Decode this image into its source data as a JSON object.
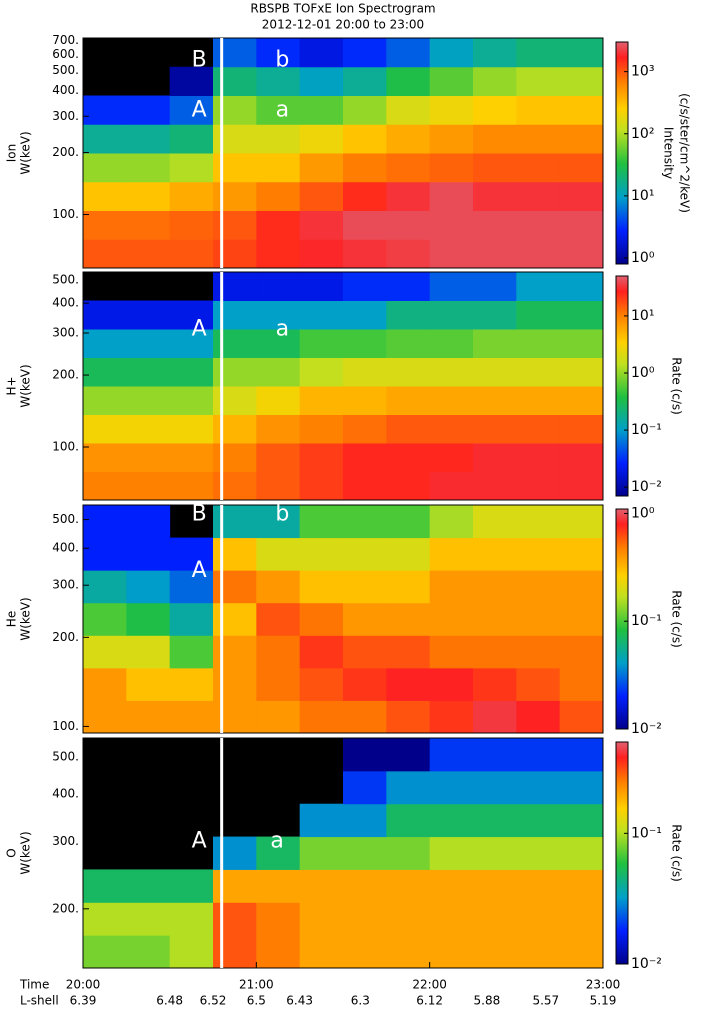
{
  "chart_data": [
    {
      "type": "heatmap",
      "title": "RBSPB  TOFxE  Ion  Spectrogram",
      "subtitle": "2012-12-01 20:00 to 23:00",
      "ylabel": [
        "Ion",
        "W(keV)"
      ],
      "colorbar_label": [
        "Intensity",
        "(c/s/ster/cm^2/keV)"
      ],
      "xlim": [
        20,
        23
      ],
      "ylim": [
        55,
        720
      ],
      "log_y": true,
      "yticks": [
        {
          "value": 100,
          "label": "100."
        },
        {
          "value": 200,
          "label": "200."
        },
        {
          "value": 300,
          "label": "300."
        },
        {
          "value": 400,
          "label": "400."
        },
        {
          "value": 500,
          "label": "500."
        },
        {
          "value": 600,
          "label": "600."
        },
        {
          "value": 700,
          "label": "700."
        }
      ],
      "clim": [
        0.8,
        3000
      ],
      "cticks": [
        {
          "value": 1,
          "label": "10⁰"
        },
        {
          "value": 10,
          "label": "10¹"
        },
        {
          "value": 100,
          "label": "10²"
        },
        {
          "value": 1000,
          "label": "10³"
        }
      ],
      "z": [
        [
          1000,
          1000,
          1000,
          1200,
          1500,
          1800,
          2000,
          2200,
          2500,
          2500,
          2500,
          2500
        ],
        [
          800,
          800,
          900,
          1000,
          1500,
          2000,
          2500,
          2500,
          2500,
          2500,
          2500,
          2500
        ],
        [
          300,
          300,
          400,
          500,
          700,
          1000,
          1500,
          2000,
          2500,
          2000,
          2000,
          2000
        ],
        [
          80,
          80,
          100,
          300,
          300,
          500,
          700,
          800,
          900,
          1000,
          1000,
          1000
        ],
        [
          15,
          15,
          20,
          150,
          150,
          200,
          300,
          400,
          500,
          600,
          600,
          600
        ],
        [
          3,
          3,
          5,
          80,
          50,
          50,
          80,
          150,
          200,
          250,
          300,
          300
        ],
        [
          null,
          null,
          1,
          20,
          15,
          10,
          15,
          30,
          50,
          80,
          100,
          100
        ],
        [
          null,
          null,
          null,
          5,
          3,
          2,
          3,
          5,
          10,
          15,
          20,
          20
        ]
      ],
      "vline": 20.8,
      "annotations": [
        {
          "text": "B",
          "x": 20.67,
          "y": 560
        },
        {
          "text": "b",
          "x": 21.15,
          "y": 560
        },
        {
          "text": "A",
          "x": 20.67,
          "y": 320
        },
        {
          "text": "a",
          "x": 21.15,
          "y": 320
        }
      ]
    },
    {
      "type": "heatmap",
      "ylabel": [
        "H+",
        "W(keV)"
      ],
      "colorbar_label": [
        "Rate (c/s)"
      ],
      "xlim": [
        20,
        23
      ],
      "ylim": [
        60,
        540
      ],
      "log_y": true,
      "yticks": [
        {
          "value": 100,
          "label": "100."
        },
        {
          "value": 200,
          "label": "200."
        },
        {
          "value": 300,
          "label": "300."
        },
        {
          "value": 400,
          "label": "400."
        },
        {
          "value": 500,
          "label": "500."
        }
      ],
      "clim": [
        0.007,
        50
      ],
      "cticks": [
        {
          "value": 0.01,
          "label": "10⁻²"
        },
        {
          "value": 0.1,
          "label": "10⁻¹"
        },
        {
          "value": 1,
          "label": "10⁰"
        },
        {
          "value": 10,
          "label": "10¹"
        }
      ],
      "z": [
        [
          10,
          10,
          10,
          12,
          15,
          20,
          25,
          25,
          30,
          30,
          30,
          30
        ],
        [
          8,
          8,
          8,
          10,
          15,
          20,
          25,
          25,
          25,
          30,
          30,
          30
        ],
        [
          3,
          3,
          3,
          5,
          8,
          10,
          12,
          15,
          15,
          15,
          15,
          15
        ],
        [
          1,
          1,
          1,
          2,
          3,
          5,
          5,
          6,
          6,
          6,
          6,
          6
        ],
        [
          0.3,
          0.3,
          0.3,
          1,
          1,
          1.5,
          2,
          2,
          2,
          2,
          2,
          2
        ],
        [
          0.1,
          0.1,
          0.1,
          0.3,
          0.3,
          0.5,
          0.5,
          0.6,
          0.6,
          0.8,
          0.8,
          0.8
        ],
        [
          0.02,
          0.02,
          0.02,
          0.1,
          0.1,
          0.1,
          0.1,
          0.2,
          0.2,
          0.2,
          0.3,
          0.3
        ],
        [
          null,
          null,
          null,
          0.02,
          0.02,
          0.02,
          0.03,
          0.03,
          0.05,
          0.05,
          0.1,
          0.1
        ]
      ],
      "vline": 20.8,
      "annotations": [
        {
          "text": "A",
          "x": 20.67,
          "y": 310
        },
        {
          "text": "a",
          "x": 21.15,
          "y": 310
        }
      ]
    },
    {
      "type": "heatmap",
      "ylabel": [
        "He",
        "W(keV)"
      ],
      "colorbar_label": [
        "Rate (c/s)"
      ],
      "xlim": [
        20,
        23
      ],
      "ylim": [
        95,
        560
      ],
      "log_y": true,
      "yticks": [
        {
          "value": 100,
          "label": "100."
        },
        {
          "value": 200,
          "label": "200."
        },
        {
          "value": 300,
          "label": "300."
        },
        {
          "value": 400,
          "label": "400."
        },
        {
          "value": 500,
          "label": "500."
        }
      ],
      "clim": [
        0.01,
        1.1
      ],
      "cticks": [
        {
          "value": 0.01,
          "label": "10⁻²"
        },
        {
          "value": 0.1,
          "label": "10⁻¹"
        },
        {
          "value": 1,
          "label": "10⁰"
        }
      ],
      "z": [
        [
          0.4,
          0.4,
          0.4,
          0.4,
          0.4,
          0.5,
          0.5,
          0.6,
          0.7,
          0.9,
          0.8,
          0.6
        ],
        [
          0.4,
          0.3,
          0.3,
          0.4,
          0.5,
          0.6,
          0.7,
          0.8,
          0.8,
          0.7,
          0.6,
          0.5
        ],
        [
          0.2,
          0.2,
          0.1,
          0.4,
          0.5,
          0.7,
          0.6,
          0.6,
          0.5,
          0.5,
          0.5,
          0.5
        ],
        [
          0.1,
          0.08,
          0.05,
          0.3,
          0.6,
          0.5,
          0.4,
          0.4,
          0.4,
          0.4,
          0.4,
          0.4
        ],
        [
          0.05,
          0.04,
          0.03,
          0.5,
          0.4,
          0.3,
          0.3,
          0.3,
          0.4,
          0.4,
          0.4,
          0.4
        ],
        [
          0.02,
          0.02,
          0.02,
          0.3,
          0.2,
          0.2,
          0.2,
          0.2,
          0.3,
          0.3,
          0.3,
          0.3
        ],
        [
          0.02,
          0.02,
          null,
          0.05,
          0.05,
          0.1,
          0.1,
          0.1,
          0.15,
          0.2,
          0.2,
          0.2
        ]
      ],
      "vline": 20.8,
      "annotations": [
        {
          "text": "B",
          "x": 20.67,
          "y": 520
        },
        {
          "text": "b",
          "x": 21.15,
          "y": 520
        },
        {
          "text": "A",
          "x": 20.67,
          "y": 335
        }
      ]
    },
    {
      "type": "heatmap",
      "ylabel": [
        "O",
        "W(keV)"
      ],
      "colorbar_label": [
        "Rate (c/s)"
      ],
      "xlim": [
        20,
        23
      ],
      "ylim": [
        140,
        560
      ],
      "log_y": true,
      "yticks": [
        {
          "value": 200,
          "label": "200."
        },
        {
          "value": 300,
          "label": "300."
        },
        {
          "value": 400,
          "label": "400."
        },
        {
          "value": 500,
          "label": "500."
        }
      ],
      "clim": [
        0.01,
        0.5
      ],
      "cticks": [
        {
          "value": 0.01,
          "label": "10⁻²"
        },
        {
          "value": 0.1,
          "label": "10⁻¹"
        }
      ],
      "z": [
        [
          0.08,
          0.08,
          0.1,
          0.3,
          0.25,
          0.2,
          0.2,
          0.2,
          0.2,
          0.2,
          0.2,
          0.2
        ],
        [
          0.1,
          0.1,
          0.1,
          0.3,
          0.25,
          0.2,
          0.2,
          0.2,
          0.2,
          0.2,
          0.2,
          0.2
        ],
        [
          0.05,
          0.05,
          0.05,
          0.2,
          0.2,
          0.2,
          0.2,
          0.2,
          0.2,
          0.2,
          0.2,
          0.2
        ],
        [
          null,
          null,
          null,
          0.03,
          0.05,
          0.08,
          0.08,
          0.08,
          0.1,
          0.1,
          0.1,
          0.1
        ],
        [
          null,
          null,
          null,
          null,
          null,
          0.03,
          0.03,
          0.05,
          0.05,
          0.05,
          0.05,
          0.05
        ],
        [
          null,
          null,
          null,
          null,
          null,
          null,
          0.02,
          0.03,
          0.03,
          0.03,
          0.03,
          0.03
        ],
        [
          null,
          null,
          null,
          null,
          null,
          null,
          0.01,
          0.01,
          0.02,
          0.02,
          0.02,
          0.02
        ]
      ],
      "vline": 20.8,
      "annotations": [
        {
          "text": "A",
          "x": 20.67,
          "y": 300
        },
        {
          "text": "a",
          "x": 21.12,
          "y": 300
        }
      ],
      "xlabel": "Time",
      "xticks": [
        {
          "value": 20,
          "label": "20:00"
        },
        {
          "value": 21,
          "label": "21:00"
        },
        {
          "value": 22,
          "label": "22:00"
        },
        {
          "value": 23,
          "label": "23:00"
        }
      ],
      "lshell": {
        "label": "L-shell",
        "x": [
          20,
          20.5,
          20.75,
          21,
          21.25,
          21.6,
          22,
          22.33,
          22.67,
          23
        ],
        "values": [
          6.39,
          6.48,
          6.52,
          6.5,
          6.43,
          6.3,
          6.12,
          5.88,
          5.57,
          5.19
        ]
      }
    }
  ]
}
